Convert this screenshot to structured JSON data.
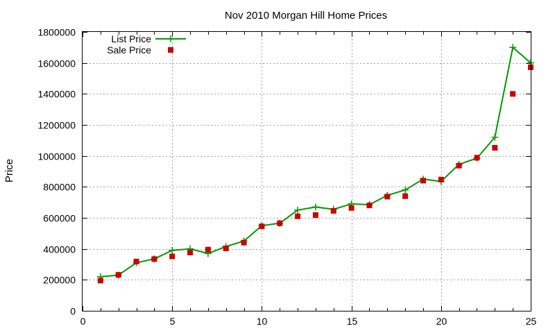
{
  "chart_data": {
    "type": "line",
    "title": "Nov 2010 Morgan Hill Home Prices",
    "xlabel": "",
    "ylabel": "Price",
    "xlim": [
      0,
      25
    ],
    "ylim": [
      0,
      1800000
    ],
    "x_ticks": [
      0,
      5,
      10,
      15,
      20,
      25
    ],
    "y_ticks": [
      0,
      200000,
      400000,
      600000,
      800000,
      1000000,
      1200000,
      1400000,
      1600000,
      1800000
    ],
    "grid": true,
    "legend_position": "top-left",
    "series": [
      {
        "name": "List Price",
        "style": "line-with-plus",
        "color": "#009900",
        "x": [
          1,
          2,
          3,
          4,
          5,
          6,
          7,
          8,
          9,
          10,
          11,
          12,
          13,
          14,
          15,
          16,
          17,
          18,
          19,
          20,
          21,
          22,
          23,
          24,
          25
        ],
        "y": [
          220000,
          230000,
          310000,
          335000,
          390000,
          400000,
          370000,
          415000,
          450000,
          550000,
          565000,
          650000,
          670000,
          655000,
          690000,
          685000,
          745000,
          780000,
          850000,
          835000,
          945000,
          985000,
          1120000,
          1700000,
          1600000
        ]
      },
      {
        "name": "Sale Price",
        "style": "square-markers",
        "color": "#cc0000",
        "x": [
          1,
          2,
          3,
          4,
          5,
          6,
          7,
          8,
          9,
          10,
          11,
          12,
          13,
          14,
          15,
          16,
          17,
          18,
          19,
          20,
          21,
          22,
          23,
          24,
          25
        ],
        "y": [
          195000,
          232000,
          318000,
          334000,
          351000,
          376000,
          395000,
          403000,
          440000,
          545000,
          565000,
          610000,
          618000,
          645000,
          664000,
          680000,
          737000,
          740000,
          840000,
          847000,
          937000,
          988000,
          1052000,
          1400000,
          1572000
        ]
      }
    ]
  }
}
